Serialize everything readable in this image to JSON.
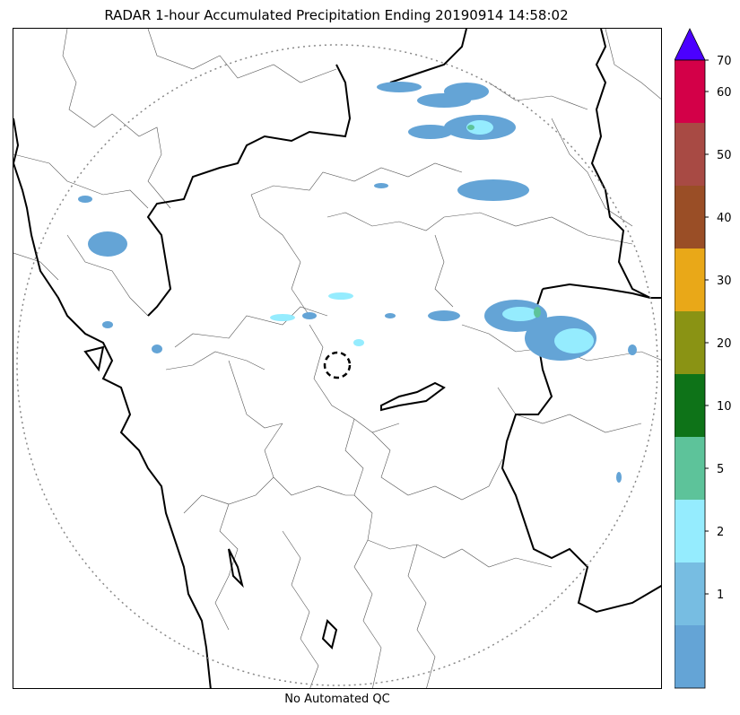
{
  "title": "RADAR 1-hour Accumulated Precipitation Ending 20190914 14:58:02",
  "footer": "No Automated QC",
  "colorbar": {
    "levels": [
      {
        "label": "",
        "color": "#64a4d6"
      },
      {
        "label": "1",
        "color": "#77bde2"
      },
      {
        "label": "2",
        "color": "#95ecfe"
      },
      {
        "label": "5",
        "color": "#5dc39a"
      },
      {
        "label": "10",
        "color": "#0e7318"
      },
      {
        "label": "20",
        "color": "#8a9314"
      },
      {
        "label": "30",
        "color": "#e9a818"
      },
      {
        "label": "40",
        "color": "#9a4e26"
      },
      {
        "label": "50",
        "color": "#a84a44"
      },
      {
        "label": "60",
        "color": "#d30048"
      }
    ],
    "top_label": "70",
    "overflow_color": "#4b00ff"
  },
  "map": {
    "radar_range_ring": "dotted",
    "radar_site_marker": "dashed-circle",
    "colors": {
      "boundary": "#000000",
      "district": "#555555",
      "ring": "#888888"
    }
  }
}
